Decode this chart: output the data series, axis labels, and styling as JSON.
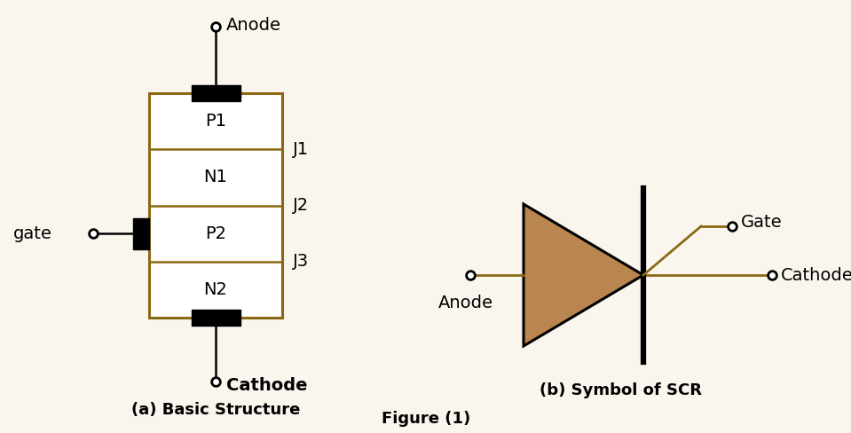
{
  "bg_color": "#faf6ee",
  "border_color": "#8B6914",
  "black_color": "#000000",
  "triangle_fill": "#b8864e",
  "text_color": "#000000",
  "layer_labels": [
    "P1",
    "N1",
    "P2",
    "N2"
  ],
  "junction_labels": [
    "J1",
    "J2",
    "J3"
  ],
  "caption_a": "(a) Basic Structure",
  "caption_b": "(b) Symbol of SCR",
  "figure_caption": "Figure (1)",
  "anode_label": "Anode",
  "cathode_label": "Cathode",
  "gate_label": "gate",
  "gate_label_b": "Gate",
  "cathode_label_b": "Cathode",
  "anode_label_b": "Anode",
  "wire_color": "#8B6914"
}
